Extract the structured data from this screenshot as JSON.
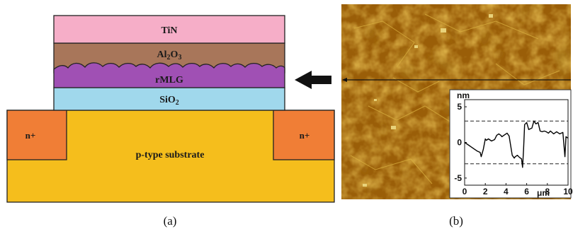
{
  "panel_a": {
    "caption": "(a)",
    "layers": {
      "tin": "TiN",
      "al2o3": {
        "base": "Al",
        "sub1": "2",
        "mid": "O",
        "sub2": "3"
      },
      "rmlg": "rMLG",
      "sio2": {
        "base": "SiO",
        "sub": "2"
      },
      "substrate": "p-type substrate",
      "n_left": "n+",
      "n_right": "n+"
    },
    "colors": {
      "tin": "#f6aec8",
      "al2o3": "#a8765a",
      "rmlg": "#a050b4",
      "sio2": "#a0d8ec",
      "substrate": "#f5be1c",
      "n_region": "#f07e36",
      "arrow": "#111111"
    }
  },
  "panel_b": {
    "caption": "(b)",
    "inset": {
      "y_unit": "nm",
      "x_unit": "μm",
      "y_ticks": [
        "5",
        "0",
        "-5"
      ],
      "x_ticks": [
        "0",
        "2",
        "4",
        "6",
        "8",
        "10"
      ]
    },
    "chart_data": {
      "type": "line",
      "xlabel": "μm",
      "ylabel": "nm",
      "xlim": [
        0,
        10
      ],
      "ylim": [
        -6,
        6
      ],
      "reference_lines_y": [
        3,
        -3
      ],
      "series": [
        {
          "x": [
            0,
            0.3,
            0.6,
            0.9,
            1.2,
            1.5,
            1.6,
            1.8,
            2.0,
            2.1,
            2.3,
            2.6,
            2.9,
            3.1,
            3.3,
            3.5,
            3.6,
            3.9,
            4.1,
            4.3,
            4.6,
            4.8,
            4.9,
            5.1,
            5.3,
            5.5,
            5.6,
            5.7,
            5.8,
            6.0,
            6.2,
            6.5,
            6.7,
            6.9,
            7.1,
            7.3,
            7.5,
            7.7,
            7.9,
            8.1,
            8.3,
            8.6,
            8.9,
            9.2,
            9.5,
            9.7,
            9.8,
            10.0
          ],
          "y": [
            0.0,
            -0.3,
            -0.6,
            -0.9,
            -1.2,
            -1.4,
            -2.0,
            -1.0,
            0.5,
            0.3,
            0.5,
            0.2,
            0.4,
            1.0,
            1.2,
            1.0,
            0.8,
            1.1,
            1.3,
            0.9,
            -1.8,
            -2.2,
            -2.0,
            -1.8,
            -2.1,
            -2.3,
            -3.5,
            -1.0,
            2.5,
            2.8,
            1.8,
            2.0,
            3.0,
            2.6,
            2.8,
            1.6,
            1.5,
            1.6,
            1.5,
            1.3,
            1.6,
            1.2,
            1.5,
            1.2,
            1.4,
            -2.0,
            0.8,
            0.6
          ]
        }
      ]
    }
  }
}
